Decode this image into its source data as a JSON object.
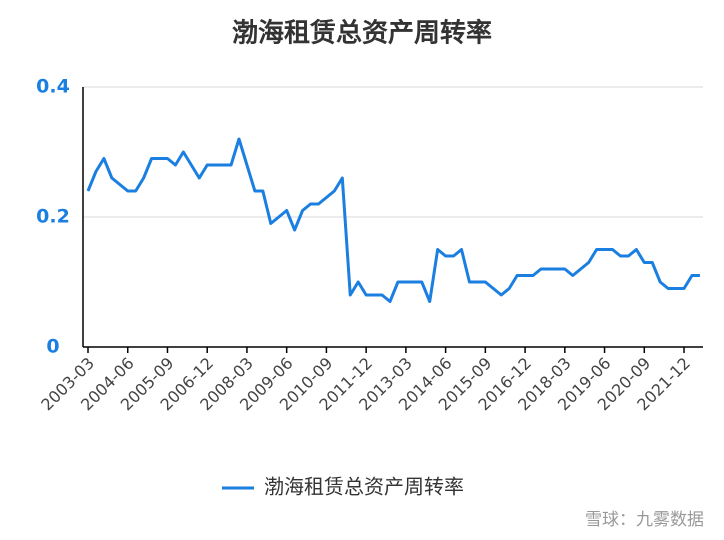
{
  "chart_data": {
    "type": "line",
    "title": "渤海租赁总资产周转率",
    "categories": [
      "2003-03",
      null,
      null,
      null,
      null,
      "2004-06",
      null,
      null,
      null,
      null,
      "2005-09",
      null,
      null,
      null,
      null,
      "2006-12",
      null,
      null,
      null,
      null,
      "2008-03",
      null,
      null,
      null,
      null,
      "2009-06",
      null,
      null,
      null,
      null,
      "2010-09",
      null,
      null,
      null,
      null,
      "2011-12",
      null,
      null,
      null,
      null,
      "2013-03",
      null,
      null,
      null,
      null,
      "2014-06",
      null,
      null,
      null,
      null,
      "2015-09",
      null,
      null,
      null,
      null,
      "2016-12",
      null,
      null,
      null,
      null,
      "2018-03",
      null,
      null,
      null,
      null,
      "2019-06",
      null,
      null,
      null,
      null,
      "2020-09",
      null,
      null,
      null,
      null,
      "2021-12",
      null,
      null
    ],
    "series": [
      {
        "name": "渤海租赁总资产周转率",
        "color": "#1a7fe0",
        "values": [
          0.24,
          0.27,
          0.29,
          0.26,
          0.25,
          0.24,
          0.24,
          0.26,
          0.29,
          0.29,
          0.29,
          0.28,
          0.3,
          0.28,
          0.26,
          0.28,
          0.28,
          0.28,
          0.28,
          0.32,
          0.28,
          0.24,
          0.24,
          0.19,
          0.2,
          0.21,
          0.18,
          0.21,
          0.22,
          0.22,
          0.23,
          0.24,
          0.26,
          0.08,
          0.1,
          0.08,
          0.08,
          0.08,
          0.07,
          0.1,
          0.1,
          0.1,
          0.1,
          0.07,
          0.15,
          0.14,
          0.14,
          0.15,
          0.1,
          0.1,
          0.1,
          0.09,
          0.08,
          0.09,
          0.11,
          0.11,
          0.11,
          0.12,
          0.12,
          0.12,
          0.12,
          0.11,
          0.12,
          0.13,
          0.15,
          0.15,
          0.15,
          0.14,
          0.14,
          0.15,
          0.13,
          0.13,
          0.1,
          0.09,
          0.09,
          0.09,
          0.11,
          0.11
        ]
      }
    ],
    "ylim": [
      0,
      0.4
    ],
    "yticks": [
      0,
      0.2,
      0.4
    ],
    "grid": true,
    "legend": "bottom",
    "watermark": "雪球：九雾数据"
  }
}
